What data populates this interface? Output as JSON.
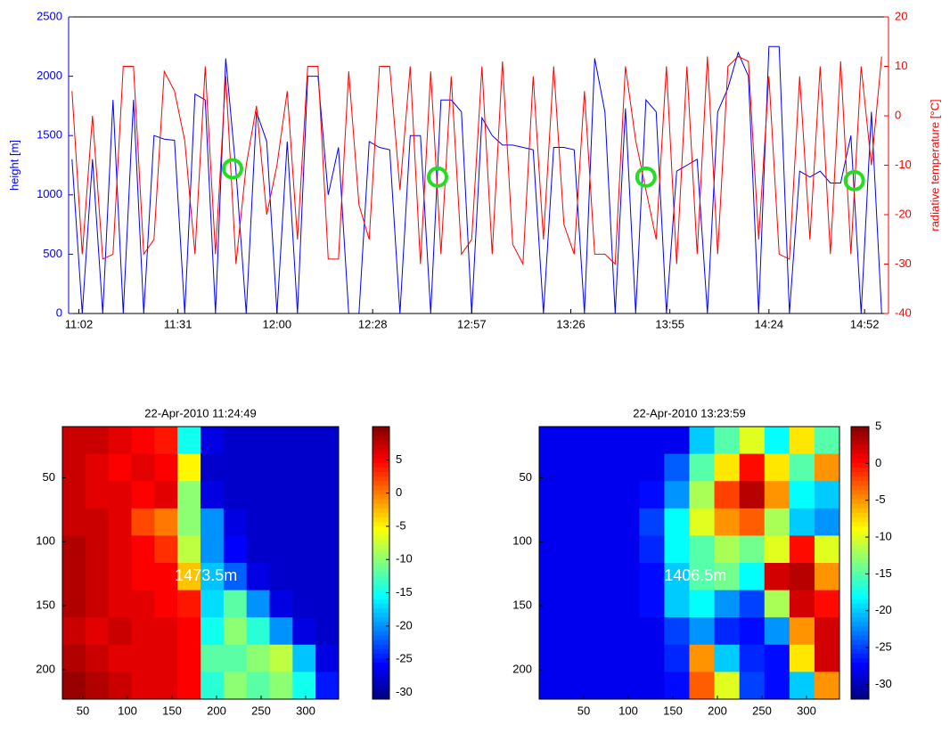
{
  "chart_data": [
    {
      "type": "line",
      "ylabel": "height [m]",
      "y2label": "radiative temperature [°C]",
      "x": [
        660,
        663,
        666,
        669,
        672,
        675,
        678,
        681,
        684,
        687,
        690,
        693,
        696,
        699,
        702,
        705,
        708,
        711,
        714,
        717,
        720,
        723,
        726,
        729,
        732,
        735,
        738,
        741,
        744,
        747,
        750,
        753,
        756,
        759,
        762,
        765,
        768,
        771,
        774,
        777,
        780,
        783,
        786,
        789,
        792,
        795,
        798,
        801,
        804,
        807,
        810,
        813,
        816,
        819,
        822,
        825,
        828,
        831,
        834,
        837,
        840,
        843,
        846,
        849,
        852,
        855,
        858,
        861,
        864,
        867,
        870,
        873,
        876,
        879,
        882,
        885,
        888,
        891,
        894,
        897
      ],
      "xlim": [
        659,
        899
      ],
      "xticks": [
        {
          "value": 662,
          "label": "11:02"
        },
        {
          "value": 691,
          "label": "11:31"
        },
        {
          "value": 720,
          "label": "12:00"
        },
        {
          "value": 748,
          "label": "12:28"
        },
        {
          "value": 777,
          "label": "12:57"
        },
        {
          "value": 806,
          "label": "13:26"
        },
        {
          "value": 835,
          "label": "13:55"
        },
        {
          "value": 864,
          "label": "14:24"
        },
        {
          "value": 892,
          "label": "14:52"
        }
      ],
      "ylim": [
        0,
        2500
      ],
      "yticks": [
        0,
        500,
        1000,
        1500,
        2000,
        2500
      ],
      "y2lim": [
        -40,
        20
      ],
      "y2ticks": [
        -40,
        -30,
        -20,
        -10,
        0,
        10,
        20
      ],
      "series": [
        {
          "color": "#0000ff",
          "axis": "y",
          "values": [
            1300,
            0,
            1300,
            0,
            1800,
            0,
            1800,
            0,
            1500,
            1470,
            1460,
            0,
            1850,
            1800,
            0,
            2150,
            1200,
            0,
            1700,
            1450,
            0,
            1450,
            0,
            2000,
            2000,
            1000,
            1400,
            0,
            0,
            1450,
            1400,
            1380,
            0,
            1500,
            1500,
            0,
            1800,
            1800,
            1700,
            0,
            1650,
            1500,
            1420,
            1420,
            1400,
            1380,
            0,
            1400,
            1400,
            1380,
            0,
            2150,
            1700,
            0,
            1730,
            0,
            1800,
            1700,
            0,
            1200,
            1250,
            1300,
            0,
            1700,
            1900,
            2200,
            2000,
            0,
            2250,
            2250,
            0,
            1200,
            1150,
            1200,
            1100,
            1100,
            1500,
            0,
            1700,
            0
          ]
        },
        {
          "color": "#ff0000",
          "axis": "y2",
          "values": [
            5,
            -28,
            0,
            -29,
            -28,
            10,
            10,
            -28,
            -25,
            9,
            5,
            -5,
            -28,
            10,
            -28,
            8,
            -30,
            -10,
            2,
            -20,
            -10,
            5,
            -25,
            10,
            10,
            -29,
            -29,
            9,
            -18,
            -25,
            10,
            10,
            -15,
            10,
            -30,
            9,
            -28,
            8,
            -28,
            -25,
            10,
            -28,
            11,
            -26,
            -30,
            8,
            -25,
            10,
            -22,
            -28,
            5,
            -28,
            -28,
            -30,
            10,
            -5,
            -15,
            -25,
            10,
            -30,
            10,
            -28,
            12,
            -28,
            10,
            12,
            11,
            -25,
            8,
            -28,
            -29,
            8,
            -25,
            10,
            -28,
            11,
            -28,
            10,
            -10,
            12
          ]
        }
      ],
      "markers": {
        "color": "#22dd22",
        "x": [
          707,
          767,
          828,
          889
        ],
        "values": [
          1220,
          1150,
          1150,
          1120
        ]
      }
    },
    {
      "type": "heatmap",
      "title": "22-Apr-2010 11:24:49",
      "annotation": "1473.5m",
      "colormap": "jet",
      "xlim": [
        27,
        337
      ],
      "ylim": [
        10,
        223
      ],
      "y_reversed": true,
      "xticks": [
        50,
        100,
        150,
        200,
        250,
        300
      ],
      "yticks": [
        50,
        100,
        150,
        200
      ],
      "clim": [
        -31,
        10
      ],
      "cticks": [
        5,
        0,
        -5,
        -10,
        -15,
        -20,
        -25,
        -30
      ],
      "z": [
        [
          7,
          7,
          6,
          5,
          4,
          -15,
          -27,
          -28,
          -28,
          -28,
          -28,
          -28
        ],
        [
          7,
          6,
          5,
          6,
          5,
          -5,
          -28,
          -28,
          -28,
          -28,
          -28,
          -28
        ],
        [
          7,
          6,
          6,
          5,
          6,
          -10,
          -27,
          -28,
          -28,
          -28,
          -28,
          -28
        ],
        [
          7,
          7,
          6,
          2,
          0,
          -10,
          -20,
          -27,
          -28,
          -28,
          -28,
          -28
        ],
        [
          8,
          7,
          6,
          5,
          3,
          -8,
          -20,
          -26,
          -28,
          -28,
          -28,
          -28
        ],
        [
          8,
          7,
          6,
          5,
          5,
          -3,
          -18,
          -22,
          -27,
          -28,
          -28,
          -28
        ],
        [
          8,
          7,
          6,
          6,
          5,
          4,
          -17,
          -12,
          -20,
          -27,
          -28,
          -28
        ],
        [
          7,
          6,
          7,
          6,
          6,
          5,
          -15,
          -10,
          -14,
          -20,
          -27,
          -28
        ],
        [
          8,
          7,
          6,
          6,
          6,
          5,
          -12,
          -12,
          -10,
          -8,
          -18,
          -27
        ],
        [
          9,
          8,
          7,
          6,
          6,
          5,
          -14,
          -10,
          -12,
          -10,
          -15,
          -25
        ]
      ]
    },
    {
      "type": "heatmap",
      "title": "22-Apr-2010 13:23:59",
      "annotation": "1406.5m",
      "colormap": "jet",
      "xlim": [
        0,
        337
      ],
      "ylim": [
        10,
        223
      ],
      "y_reversed": true,
      "xticks": [
        50,
        100,
        150,
        200,
        250,
        300
      ],
      "yticks": [
        50,
        100,
        150,
        200
      ],
      "clim": [
        -32,
        5
      ],
      "cticks": [
        5,
        0,
        -5,
        -10,
        -15,
        -20,
        -25,
        -30
      ],
      "z": [
        [
          -28,
          -28,
          -28,
          -28,
          -28,
          -28,
          -20,
          -15,
          -10,
          -18,
          -8,
          -15
        ],
        [
          -28,
          -28,
          -28,
          -28,
          -28,
          -24,
          -15,
          -8,
          0,
          -8,
          -15,
          -5
        ],
        [
          -28,
          -28,
          -28,
          -28,
          -27,
          -22,
          -12,
          -2,
          3,
          -5,
          -18,
          -20
        ],
        [
          -28,
          -28,
          -28,
          -28,
          -25,
          -18,
          -10,
          -5,
          -3,
          -12,
          -20,
          -22
        ],
        [
          -28,
          -28,
          -28,
          -28,
          -26,
          -18,
          -15,
          -12,
          -14,
          -10,
          0,
          -10
        ],
        [
          -28,
          -28,
          -28,
          -28,
          -27,
          -20,
          -15,
          -14,
          -18,
          2,
          3,
          -5
        ],
        [
          -28,
          -28,
          -28,
          -28,
          -27,
          -20,
          -18,
          -22,
          -25,
          -12,
          2,
          0
        ],
        [
          -28,
          -28,
          -28,
          -28,
          -28,
          -25,
          -22,
          -26,
          -27,
          -22,
          -5,
          2
        ],
        [
          -28,
          -28,
          -28,
          -28,
          -28,
          -26,
          -5,
          -20,
          -26,
          -27,
          -8,
          2
        ],
        [
          -28,
          -28,
          -28,
          -28,
          -28,
          -27,
          -3,
          -10,
          -25,
          -27,
          -20,
          -5
        ]
      ]
    }
  ]
}
